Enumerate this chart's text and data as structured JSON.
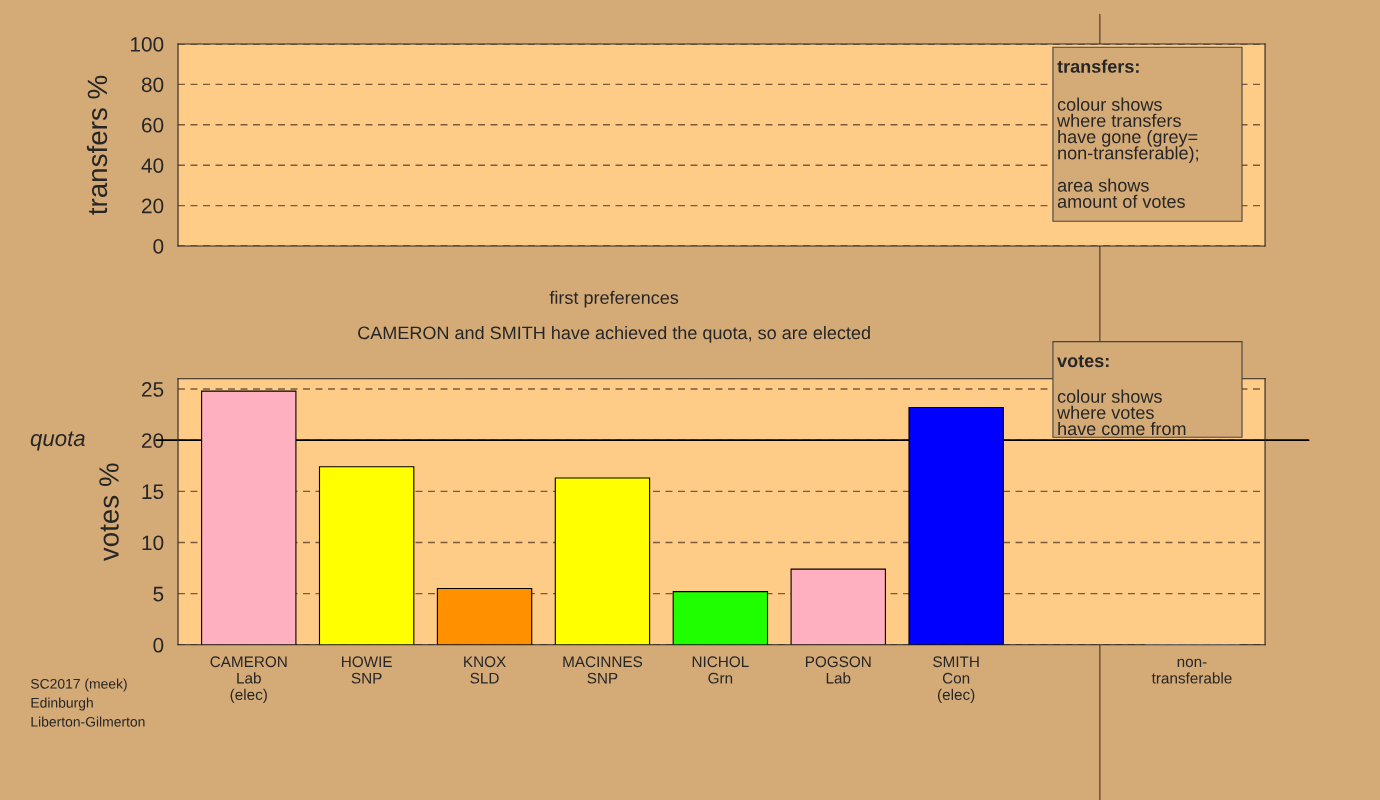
{
  "chart_data": [
    {
      "type": "bar",
      "ylabel": "transfers %",
      "categories": [
        null,
        null,
        null,
        null,
        null,
        null,
        null,
        null,
        null
      ],
      "values": [
        null,
        null,
        null,
        null,
        null,
        null,
        null,
        null,
        null
      ],
      "ylim": [
        0,
        100
      ],
      "yticks": [
        0,
        20,
        40,
        60,
        80,
        100
      ],
      "grid": "y",
      "tick_labels": "y",
      "annotations": [
        "transfers:",
        "colour shows\nwhere transfers\nhave gone (grey=\nnon-transferable);\n\narea shows\namount of votes"
      ]
    },
    {
      "type": "bar",
      "title": "first preferences",
      "subtitle": "CAMERON and SMITH have achieved the quota, so are elected",
      "ylabel": "votes %",
      "categories": [
        "CAMERON\nLab\n(elec)",
        "HOWIE\nSNP",
        "KNOX\nSLD",
        "MACINNES\nSNP",
        "NICHOL\nGrn",
        "POGSON\nLab",
        "SMITH\nCon\n(elec)",
        null,
        "non-\ntransferable"
      ],
      "values": [
        24.8,
        17.4,
        5.5,
        16.3,
        5.2,
        7.4,
        23.2,
        null,
        0
      ],
      "colors": [
        "#ffb0c0",
        "#ffff00",
        "#ff9000",
        "#ffff00",
        "#20ff00",
        "#ffb0c0",
        "#0000ff",
        "#808080",
        "#808080"
      ],
      "ylim": [
        0,
        26
      ],
      "yticks": [
        0,
        5,
        10,
        15,
        20,
        25
      ],
      "grid": "y",
      "ref_lines": [
        {
          "axis": "y",
          "value": 20,
          "label": "quota",
          "color": "#000000",
          "line_style": "solid"
        }
      ],
      "annotations": [
        "votes:",
        "colour shows\nwhere votes\nhave come from",
        "SC2017 (meek)\nEdinburgh\nLiberton-Gilmerton"
      ]
    }
  ]
}
